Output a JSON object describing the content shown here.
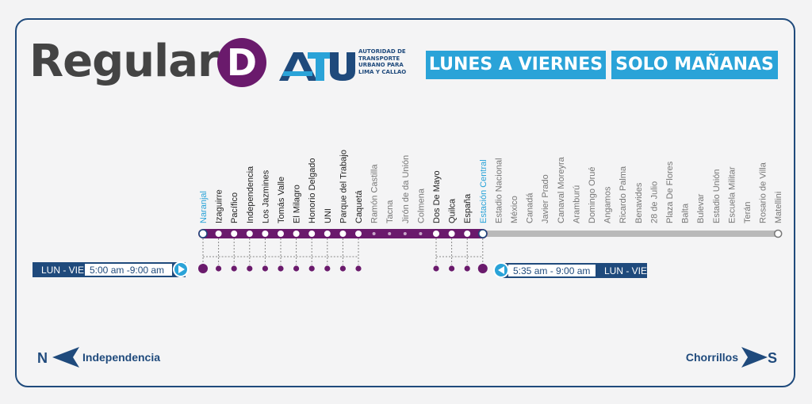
{
  "header": {
    "route_name": "Regular",
    "route_letter": "D",
    "logo_text": "ATU",
    "logo_caption": [
      "AUTORIDAD DE",
      "TRANSPORTE",
      "URBANO PARA",
      "LIMA Y CALLAO"
    ],
    "days": "LUNES A VIERNES",
    "time_of_day": "SOLO MAÑANAS"
  },
  "colors": {
    "route": "#6a1a6c",
    "accent": "#2aa3d8",
    "navy": "#1f4a7c",
    "inactive": "#b9b9b9",
    "text_dark": "#444444"
  },
  "stations": [
    {
      "name": "Naranjal",
      "served": true,
      "terminal": true,
      "highlight": true
    },
    {
      "name": "Izaguirre",
      "served": true
    },
    {
      "name": "Pacífico",
      "served": true
    },
    {
      "name": "Independencia",
      "served": true
    },
    {
      "name": "Los Jazmines",
      "served": true
    },
    {
      "name": "Tomás Valle",
      "served": true
    },
    {
      "name": "El Milagro",
      "served": true
    },
    {
      "name": "Honorio Delgado",
      "served": true
    },
    {
      "name": "UNI",
      "served": true
    },
    {
      "name": "Parque del Trabajo",
      "served": true
    },
    {
      "name": "Caquetá",
      "served": true
    },
    {
      "name": "Ramón Castilla",
      "served": false
    },
    {
      "name": "Tacna",
      "served": false
    },
    {
      "name": "Jirón de da Unión",
      "served": false
    },
    {
      "name": "Colmena",
      "served": false
    },
    {
      "name": "Dos De Mayo",
      "served": true
    },
    {
      "name": "Quilca",
      "served": true
    },
    {
      "name": "España",
      "served": true
    },
    {
      "name": "Estación Central",
      "served": true,
      "terminal": true,
      "highlight": true
    },
    {
      "name": "Estadio Nacional",
      "served": false
    },
    {
      "name": "México",
      "served": false
    },
    {
      "name": "Canadá",
      "served": false
    },
    {
      "name": "Javier Prado",
      "served": false
    },
    {
      "name": "Canaval Moreyra",
      "served": false
    },
    {
      "name": "Aramburú",
      "served": false
    },
    {
      "name": "Domingo Orué",
      "served": false
    },
    {
      "name": "Angamos",
      "served": false
    },
    {
      "name": "Ricardo Palma",
      "served": false
    },
    {
      "name": "Benavides",
      "served": false
    },
    {
      "name": "28 de Julio",
      "served": false
    },
    {
      "name": "Plaza De Flores",
      "served": false
    },
    {
      "name": "Balta",
      "served": false
    },
    {
      "name": "Bulevar",
      "served": false
    },
    {
      "name": "Estadio Unión",
      "served": false
    },
    {
      "name": "Escuela Militar",
      "served": false
    },
    {
      "name": "Terán",
      "served": false
    },
    {
      "name": "Rosario de Villa",
      "served": false
    },
    {
      "name": "Matellini",
      "served": false,
      "terminal": true
    }
  ],
  "schedules": {
    "southbound": {
      "days": "LUN - VIE",
      "hours": "5:00 am -9:00 am"
    },
    "northbound": {
      "days": "LUN - VIE",
      "hours": "5:35 am - 9:00 am"
    }
  },
  "directions": {
    "north": {
      "letter": "N",
      "label": "Independencia"
    },
    "south": {
      "letter": "S",
      "label": "Chorrillos"
    }
  }
}
